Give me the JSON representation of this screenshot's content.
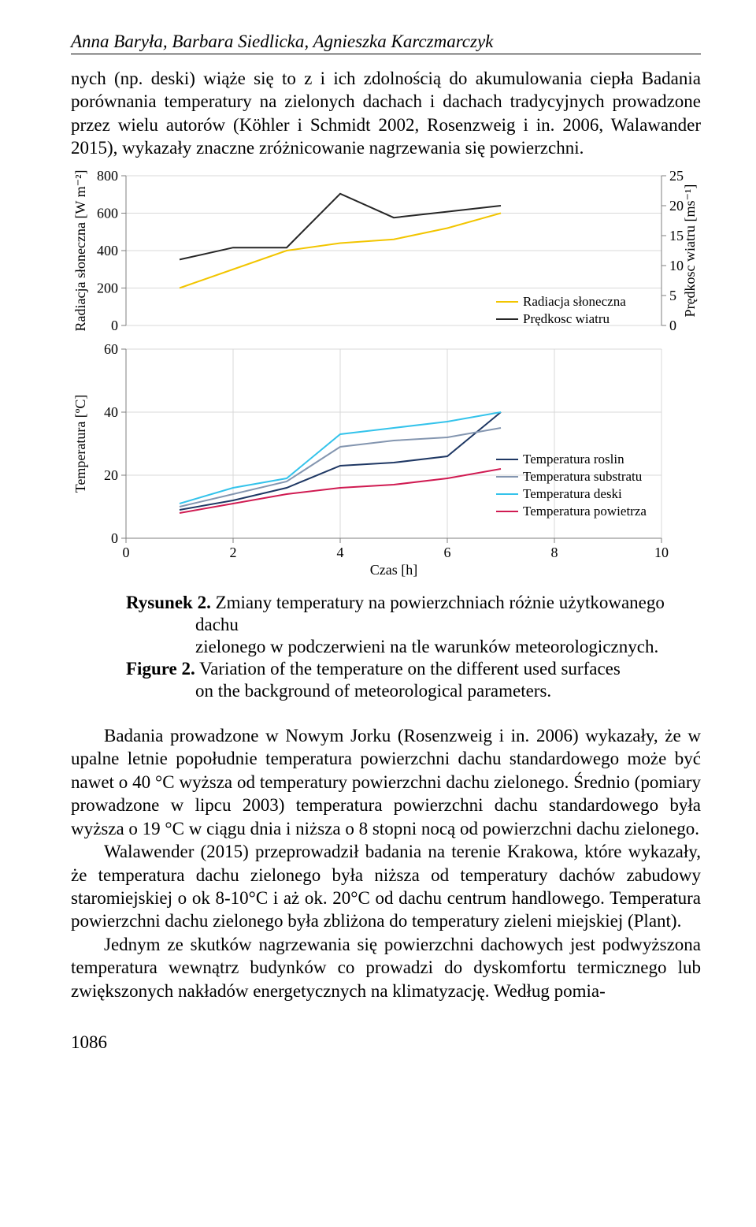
{
  "running_head": "Anna Baryła, Barbara Siedlicka, Agnieszka Karczmarczyk",
  "para1": "nych (np. deski) wiąże się to z i ich zdolnością do akumulowania ciepła Badania porównania temperatury na zielonych dachach i dachach tradycyjnych prowadzone przez wielu autorów (Köhler i Schmidt 2002, Rosenzweig i in. 2006, Walawander 2015), wykazały znaczne zróżnicowanie nagrzewania się powierzchni.",
  "caption": {
    "rys_label": "Rysunek 2.",
    "rys_text1": "Zmiany temperatury na powierzchniach różnie użytkowanego dachu",
    "rys_text2": "zielonego w podczerwieni na tle warunków meteorologicznych.",
    "fig_label": "Figure 2.",
    "fig_text1": "Variation of the temperature on the different used surfaces",
    "fig_text2": "on the background of meteorological parameters."
  },
  "para2": "Badania prowadzone w Nowym Jorku (Rosenzweig i in. 2006) wykazały, że w upalne letnie popołudnie temperatura powierzchni dachu standardowego może być nawet o 40 °C wyższa od temperatury powierzchni dachu zielonego. Średnio (pomiary prowadzone w lipcu 2003) temperatura powierzchni dachu standardowego była wyższa o 19 °C w ciągu dnia i niższa o 8 stopni nocą od powierzchni dachu zielonego.",
  "para3": "Walawender (2015) przeprowadził badania na terenie Krakowa, które wykazały, że temperatura dachu zielonego była niższa od temperatury dachów zabudowy staromiejskiej o ok 8-10°C i aż ok. 20°C od dachu centrum handlowego. Temperatura powierzchni dachu zielonego była zbliżona do temperatury zieleni miejskiej (Plant).",
  "para4": "Jednym ze skutków nagrzewania się powierzchni dachowych jest podwyższona temperatura wewnątrz budynków co prowadzi do dyskomfortu termicznego lub zwiększonych nakładów energetycznych na klimatyzację. Według pomia-",
  "pagenum": "1086",
  "chart": {
    "background": "#ffffff",
    "grid_color": "#d9d9d9",
    "axis_color": "#7f7f7f",
    "text_color": "#000000",
    "font_size": 18,
    "axis_font_size": 18,
    "top": {
      "ylabel_left": "Radiacja słoneczna [W m⁻²]",
      "ylabel_right": "Prędkosc wiatru [ms⁻¹]",
      "y_left": {
        "min": 0,
        "max": 800,
        "step": 200,
        "ticks": [
          "0",
          "200",
          "400",
          "600",
          "800"
        ]
      },
      "y_right": {
        "min": 0,
        "max": 25,
        "step": 5,
        "ticks": [
          "0",
          "5",
          "10",
          "15",
          "20",
          "25"
        ]
      },
      "series": [
        {
          "name": "Radiacja słoneczna",
          "color": "#f2c500",
          "width": 2,
          "x": [
            1,
            2,
            3,
            4,
            5,
            6,
            7
          ],
          "y": [
            200,
            300,
            400,
            440,
            460,
            520,
            600
          ],
          "axis": "left"
        },
        {
          "name": "Prędkosc wiatru",
          "color": "#262626",
          "width": 2,
          "x": [
            1,
            2,
            3,
            4,
            5,
            6,
            7
          ],
          "y": [
            11,
            13,
            13,
            22,
            18,
            19,
            20
          ],
          "axis": "right"
        }
      ],
      "legend": [
        {
          "label": "Radiacja słoneczna",
          "color": "#f2c500"
        },
        {
          "label": "Prędkosc wiatru",
          "color": "#262626"
        }
      ]
    },
    "bottom": {
      "ylabel": "Temperatura [ºC]",
      "xlabel": "Czas [h]",
      "y": {
        "min": 0,
        "max": 60,
        "step": 20,
        "ticks": [
          "0",
          "20",
          "40",
          "60"
        ]
      },
      "x": {
        "min": 0,
        "max": 10,
        "step": 2,
        "ticks": [
          "0",
          "2",
          "4",
          "6",
          "8",
          "10"
        ]
      },
      "series": [
        {
          "name": "Temperatura roslin",
          "color": "#1f3864",
          "width": 2,
          "x": [
            1,
            2,
            3,
            4,
            5,
            6,
            7
          ],
          "y": [
            9,
            12,
            16,
            23,
            24,
            26,
            40
          ]
        },
        {
          "name": "Temperatura substratu",
          "color": "#8496b0",
          "width": 2,
          "x": [
            1,
            2,
            3,
            4,
            5,
            6,
            7
          ],
          "y": [
            10,
            14,
            18,
            29,
            31,
            32,
            35
          ]
        },
        {
          "name": "Temperatura deski",
          "color": "#34c3eb",
          "width": 2,
          "x": [
            1,
            2,
            3,
            4,
            5,
            6,
            7
          ],
          "y": [
            11,
            16,
            19,
            33,
            35,
            37,
            40
          ]
        },
        {
          "name": "Temperatura powietrza",
          "color": "#d01b52",
          "width": 2,
          "x": [
            1,
            2,
            3,
            4,
            5,
            6,
            7
          ],
          "y": [
            8,
            11,
            14,
            16,
            17,
            19,
            22
          ]
        }
      ],
      "legend": [
        {
          "label": "Temperatura roslin",
          "color": "#1f3864"
        },
        {
          "label": "Temperatura substratu",
          "color": "#8496b0"
        },
        {
          "label": "Temperatura deski",
          "color": "#34c3eb"
        },
        {
          "label": "Temperatura powietrza",
          "color": "#d01b52"
        }
      ]
    }
  }
}
